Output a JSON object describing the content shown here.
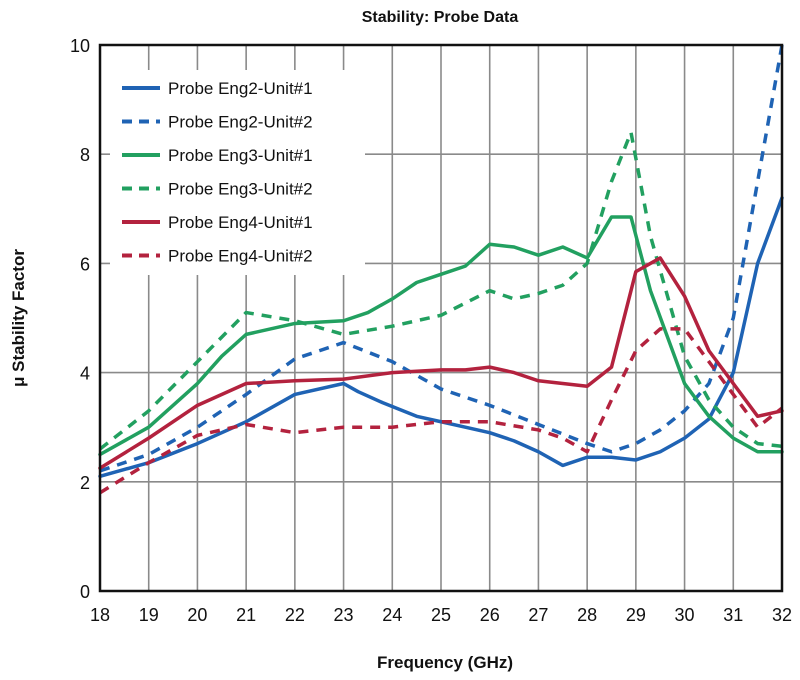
{
  "chart_data": {
    "type": "line",
    "title": "Stability: Probe Data",
    "xlabel": "Frequency (GHz)",
    "ylabel": "μ Stability Factor",
    "xlim": [
      18,
      32
    ],
    "ylim": [
      0,
      10
    ],
    "xticks": [
      18,
      19,
      20,
      21,
      22,
      23,
      24,
      25,
      26,
      27,
      28,
      29,
      30,
      31,
      32
    ],
    "yticks": [
      0,
      2,
      4,
      6,
      8,
      10
    ],
    "grid": true,
    "legend": "top-left",
    "series": [
      {
        "name": "Probe Eng2-Unit#1",
        "color": "#1f63b4",
        "dash": false,
        "x": [
          18,
          19,
          20,
          21,
          22,
          23,
          23.3,
          23.8,
          24.5,
          25,
          25.5,
          26,
          26.5,
          27,
          27.5,
          28,
          28.5,
          29,
          29.5,
          30,
          30.5,
          31,
          31.5,
          32
        ],
        "y": [
          2.1,
          2.35,
          2.7,
          3.1,
          3.6,
          3.8,
          3.65,
          3.45,
          3.2,
          3.1,
          3.0,
          2.9,
          2.75,
          2.55,
          2.3,
          2.45,
          2.45,
          2.4,
          2.55,
          2.8,
          3.15,
          4.0,
          6.0,
          7.2
        ]
      },
      {
        "name": "Probe Eng2-Unit#2",
        "color": "#1f63b4",
        "dash": true,
        "x": [
          18,
          19,
          20,
          21,
          22,
          23,
          24,
          25,
          26,
          27,
          28,
          28.5,
          29,
          29.5,
          30,
          30.5,
          31,
          31.5,
          32
        ],
        "y": [
          2.2,
          2.5,
          3.0,
          3.6,
          4.25,
          4.55,
          4.2,
          3.7,
          3.4,
          3.05,
          2.7,
          2.55,
          2.7,
          2.95,
          3.3,
          3.8,
          5.0,
          7.5,
          10.0
        ]
      },
      {
        "name": "Probe Eng3-Unit#1",
        "color": "#22a060",
        "dash": false,
        "x": [
          18,
          19,
          20,
          20.5,
          21,
          22,
          23,
          23.5,
          24,
          24.5,
          25,
          25.5,
          26,
          26.5,
          27,
          27.5,
          28,
          28.5,
          28.9,
          29.3,
          30,
          30.5,
          31,
          31.5,
          32
        ],
        "y": [
          2.5,
          3.0,
          3.8,
          4.3,
          4.7,
          4.9,
          4.95,
          5.1,
          5.35,
          5.65,
          5.8,
          5.95,
          6.35,
          6.3,
          6.15,
          6.3,
          6.1,
          6.85,
          6.85,
          5.5,
          3.8,
          3.2,
          2.8,
          2.55,
          2.55
        ]
      },
      {
        "name": "Probe Eng3-Unit#2",
        "color": "#22a060",
        "dash": true,
        "x": [
          18,
          19,
          20,
          21,
          22,
          23,
          24,
          25,
          26,
          26.5,
          27,
          27.5,
          28,
          28.5,
          28.9,
          29.3,
          30,
          30.5,
          31,
          31.5,
          32
        ],
        "y": [
          2.6,
          3.3,
          4.2,
          5.1,
          4.95,
          4.7,
          4.85,
          5.05,
          5.5,
          5.35,
          5.45,
          5.6,
          6.0,
          7.5,
          8.4,
          6.5,
          4.3,
          3.5,
          3.0,
          2.7,
          2.65
        ]
      },
      {
        "name": "Probe Eng4-Unit#1",
        "color": "#b3223e",
        "dash": false,
        "x": [
          18,
          19,
          20,
          21,
          22,
          23,
          24,
          25,
          25.5,
          26,
          26.5,
          27,
          27.5,
          28,
          28.5,
          29,
          29.5,
          30,
          30.5,
          31,
          31.5,
          32
        ],
        "y": [
          2.25,
          2.8,
          3.4,
          3.8,
          3.85,
          3.88,
          4.0,
          4.05,
          4.05,
          4.1,
          4.0,
          3.85,
          3.8,
          3.75,
          4.1,
          5.85,
          6.1,
          5.4,
          4.4,
          3.8,
          3.2,
          3.3
        ]
      },
      {
        "name": "Probe Eng4-Unit#2",
        "color": "#b3223e",
        "dash": true,
        "x": [
          18,
          19,
          20,
          21,
          22,
          23,
          24,
          25,
          26,
          27,
          27.5,
          28,
          28.5,
          29,
          29.5,
          30,
          30.5,
          31,
          31.5,
          32
        ],
        "y": [
          1.8,
          2.35,
          2.85,
          3.05,
          2.9,
          3.0,
          3.0,
          3.1,
          3.1,
          2.95,
          2.8,
          2.55,
          3.5,
          4.4,
          4.8,
          4.8,
          4.2,
          3.6,
          3.0,
          3.35
        ]
      }
    ]
  }
}
